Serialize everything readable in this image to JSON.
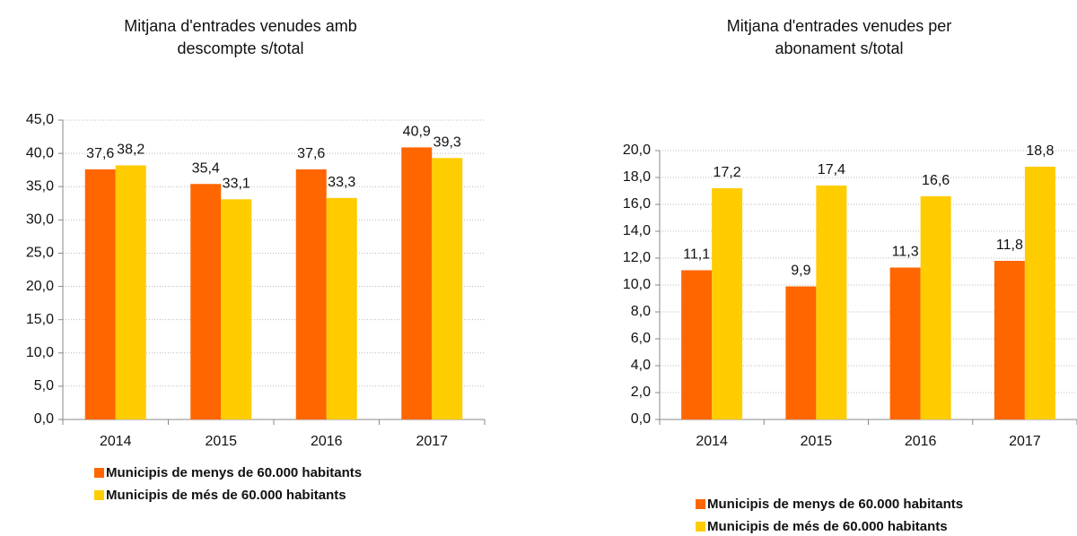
{
  "chart_data": [
    {
      "type": "bar",
      "title": [
        "Mitjana d'entrades venudes amb",
        "descompte s/total"
      ],
      "categories": [
        "2014",
        "2015",
        "2016",
        "2017"
      ],
      "series": [
        {
          "name": "Municipis de menys de 60.000 habitants",
          "color": "#ff6600",
          "values": [
            37.6,
            35.4,
            37.6,
            40.9
          ],
          "value_labels": [
            "37,6",
            "35,4",
            "37,6",
            "40,9"
          ]
        },
        {
          "name": "Municipis de més de 60.000 habitants",
          "color": "#ffcc00",
          "values": [
            38.2,
            33.1,
            33.3,
            39.3
          ],
          "value_labels": [
            "38,2",
            "33,1",
            "33,3",
            "39,3"
          ]
        }
      ],
      "ylim": [
        0,
        45
      ],
      "yticks": [
        {
          "value": 0,
          "label": "0,0"
        },
        {
          "value": 5,
          "label": "5,0"
        },
        {
          "value": 10,
          "label": "10,0"
        },
        {
          "value": 15,
          "label": "15,0"
        },
        {
          "value": 20,
          "label": "20,0"
        },
        {
          "value": 25,
          "label": "25,0"
        },
        {
          "value": 30,
          "label": "30,0"
        },
        {
          "value": 35,
          "label": "35,0"
        },
        {
          "value": 40,
          "label": "40,0"
        },
        {
          "value": 45,
          "label": "45,0"
        }
      ],
      "grid": true
    },
    {
      "type": "bar",
      "title": [
        "Mitjana d'entrades venudes per",
        "abonament s/total"
      ],
      "categories": [
        "2014",
        "2015",
        "2016",
        "2017"
      ],
      "series": [
        {
          "name": "Municipis de menys de 60.000 habitants",
          "color": "#ff6600",
          "values": [
            11.1,
            9.9,
            11.3,
            11.8
          ],
          "value_labels": [
            "11,1",
            "9,9",
            "11,3",
            "11,8"
          ]
        },
        {
          "name": "Municipis de més de 60.000 habitants",
          "color": "#ffcc00",
          "values": [
            17.2,
            17.4,
            16.6,
            18.8
          ],
          "value_labels": [
            "17,2",
            "17,4",
            "16,6",
            "18,8"
          ]
        }
      ],
      "ylim": [
        0,
        20
      ],
      "yticks": [
        {
          "value": 0,
          "label": "0,0"
        },
        {
          "value": 2,
          "label": "2,0"
        },
        {
          "value": 4,
          "label": "4,0"
        },
        {
          "value": 6,
          "label": "6,0"
        },
        {
          "value": 8,
          "label": "8,0"
        },
        {
          "value": 10,
          "label": "10,0"
        },
        {
          "value": 12,
          "label": "12,0"
        },
        {
          "value": 14,
          "label": "14,0"
        },
        {
          "value": 16,
          "label": "16,0"
        },
        {
          "value": 18,
          "label": "18,0"
        },
        {
          "value": 20,
          "label": "20,0"
        }
      ],
      "grid": true
    }
  ]
}
